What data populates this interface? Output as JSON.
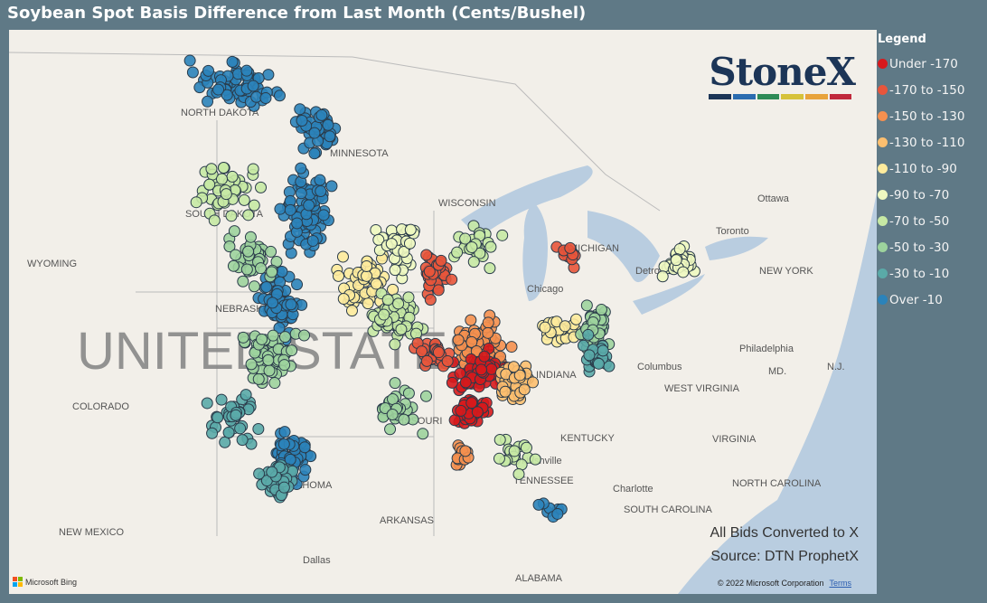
{
  "title": "Soybean Spot Basis Difference from Last Month (Cents/Bushel)",
  "legend": {
    "heading": "Legend",
    "items": [
      {
        "label": "Under -170",
        "color": "#d7191c"
      },
      {
        "label": "-170 to -150",
        "color": "#e8553b"
      },
      {
        "label": "-150 to -130",
        "color": "#f5904f"
      },
      {
        "label": "-130 to -110",
        "color": "#fdbf6f"
      },
      {
        "label": "-110 to -90",
        "color": "#feeb9c"
      },
      {
        "label": "-90 to -70",
        "color": "#eef8c0"
      },
      {
        "label": "-70 to -50",
        "color": "#c7e9a4"
      },
      {
        "label": "-50 to -30",
        "color": "#9dd39d"
      },
      {
        "label": "-30 to -10",
        "color": "#5aaaa8"
      },
      {
        "label": "Over -10",
        "color": "#2b83ba"
      }
    ]
  },
  "logo": {
    "text": "StoneX",
    "bar_colors": [
      "#1c3557",
      "#2b6cb0",
      "#2e8b57",
      "#d6c23a",
      "#e8a33b",
      "#c0283c"
    ]
  },
  "map_labels": {
    "country": "UNITED STATES",
    "states": [
      "NORTH DAKOTA",
      "MINNESOTA",
      "SOUTH DAKOTA",
      "WYOMING",
      "NEBRASKA",
      "COLORADO",
      "MISSOURI",
      "KENTUCKY",
      "TENNESSEE",
      "ARKANSAS",
      "OKLAHOMA",
      "NEW MEXICO",
      "ALABAMA",
      "WEST VIRGINIA",
      "VIRGINIA",
      "NORTH CAROLINA",
      "SOUTH CAROLINA",
      "NEW YORK",
      "MICHIGAN",
      "WISCONSIN",
      "INDIANA",
      "MD.",
      "N.J."
    ],
    "cities": [
      "Chicago",
      "Columbus",
      "Philadelphia",
      "Nashville",
      "Charlotte",
      "Dallas",
      "Toronto",
      "Ottawa",
      "Detroit"
    ]
  },
  "notes": [
    "All Bids Converted to X",
    "Source: DTN ProphetX"
  ],
  "copyright": "© 2022 Microsoft Corporation",
  "terms": "Terms",
  "bing": "Microsoft Bing"
}
